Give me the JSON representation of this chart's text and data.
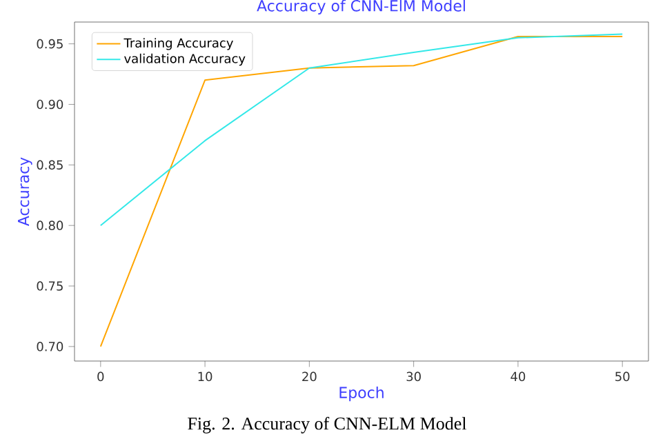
{
  "chart_data": {
    "type": "line",
    "title": "Accuracy of CNN-ElM Model",
    "xlabel": "Epoch",
    "ylabel": "Accuracy",
    "annotations": [
      "Fig. 2.   Accuracy of  CNN-ELM Model"
    ],
    "x": [
      0,
      10,
      20,
      30,
      40,
      50
    ],
    "series": [
      {
        "name": "Training Accuracy",
        "color": "#ffa500",
        "values": [
          0.7,
          0.92,
          0.93,
          0.932,
          0.956,
          0.956
        ]
      },
      {
        "name": "validation Accuracy",
        "color": "#33e8e8",
        "values": [
          0.8,
          0.87,
          0.93,
          0.943,
          0.955,
          0.958
        ]
      }
    ],
    "xlim": [
      -2.5,
      52.5
    ],
    "ylim": [
      0.688,
      0.968
    ],
    "xticks": [
      0,
      10,
      20,
      30,
      40,
      50
    ],
    "yticks": [
      {
        "value": 0.7,
        "label": "0.70"
      },
      {
        "value": 0.75,
        "label": "0.75"
      },
      {
        "value": 0.8,
        "label": "0.80"
      },
      {
        "value": 0.85,
        "label": "0.85"
      },
      {
        "value": 0.9,
        "label": "0.90"
      },
      {
        "value": 0.95,
        "label": "0.95"
      }
    ],
    "legend": "top left",
    "grid": false,
    "marker": "none",
    "line_style": "solid"
  }
}
